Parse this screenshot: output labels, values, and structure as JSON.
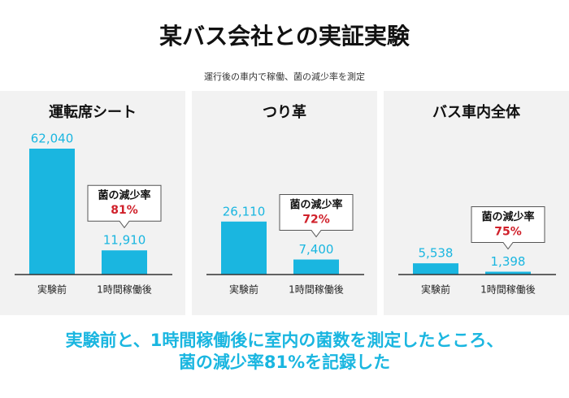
{
  "title": "某バス会社との実証実験",
  "subtitle": "運行後の車内で稼働、菌の減少率を測定",
  "chart_data": [
    {
      "type": "bar",
      "title": "運転席シート",
      "categories": [
        "実験前",
        "1時間稼働後"
      ],
      "values": [
        62040,
        11910
      ],
      "value_labels": [
        "62,040",
        "11,910"
      ],
      "color": "#1ab6e0",
      "annotation": {
        "text": "菌の減少率",
        "value": "81%"
      }
    },
    {
      "type": "bar",
      "title": "つり革",
      "categories": [
        "実験前",
        "1時間稼働後"
      ],
      "values": [
        26110,
        7400
      ],
      "value_labels": [
        "26,110",
        "7,400"
      ],
      "color": "#1ab6e0",
      "annotation": {
        "text": "菌の減少率",
        "value": "72%"
      }
    },
    {
      "type": "bar",
      "title": "バス車内全体",
      "categories": [
        "実験前",
        "1時間稼働後"
      ],
      "values": [
        5538,
        1398
      ],
      "value_labels": [
        "5,538",
        "1,398"
      ],
      "color": "#1ab6e0",
      "annotation": {
        "text": "菌の減少率",
        "value": "75%"
      }
    }
  ],
  "footer": [
    "実験前と、1時間稼働後に室内の菌数を測定したところ、",
    "菌の減少率81%を記録した"
  ]
}
